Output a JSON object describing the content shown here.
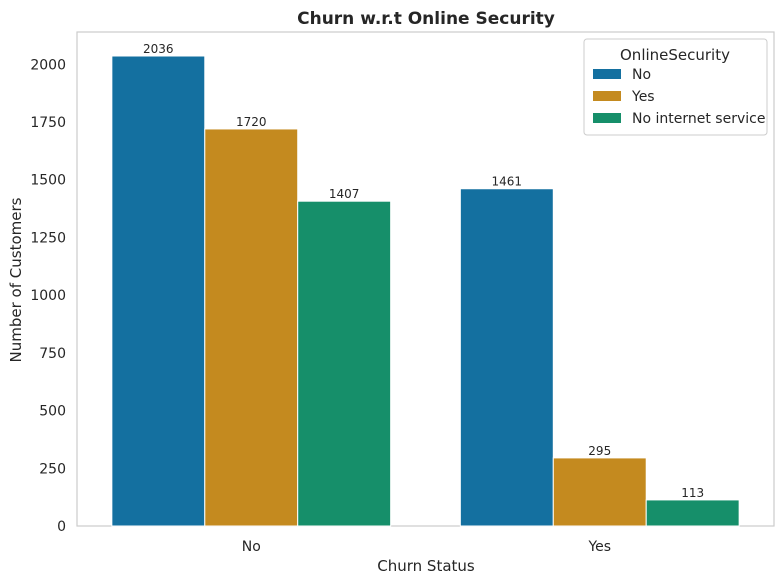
{
  "chart_data": {
    "type": "bar",
    "title": "Churn w.r.t Online Security",
    "xlabel": "Churn Status",
    "ylabel": "Number of Customers",
    "categories": [
      "No",
      "Yes"
    ],
    "series": [
      {
        "name": "No",
        "values": [
          2036,
          1461
        ],
        "color": "#1470a0"
      },
      {
        "name": "Yes",
        "values": [
          1720,
          295
        ],
        "color": "#c48a1f"
      },
      {
        "name": "No internet service",
        "values": [
          1407,
          113
        ],
        "color": "#168f6a"
      }
    ],
    "data_labels": [
      "2036",
      "1461",
      "1720",
      "295",
      "1407",
      "113"
    ],
    "ylim": [
      0,
      2140
    ],
    "yticks": [
      0,
      250,
      500,
      750,
      1000,
      1250,
      1500,
      1750,
      2000
    ],
    "ytick_labels": [
      "0",
      "250",
      "500",
      "750",
      "1000",
      "1250",
      "1500",
      "1750",
      "2000"
    ],
    "legend": {
      "title": "OnlineSecurity",
      "position": "top-right"
    },
    "grid": false
  }
}
